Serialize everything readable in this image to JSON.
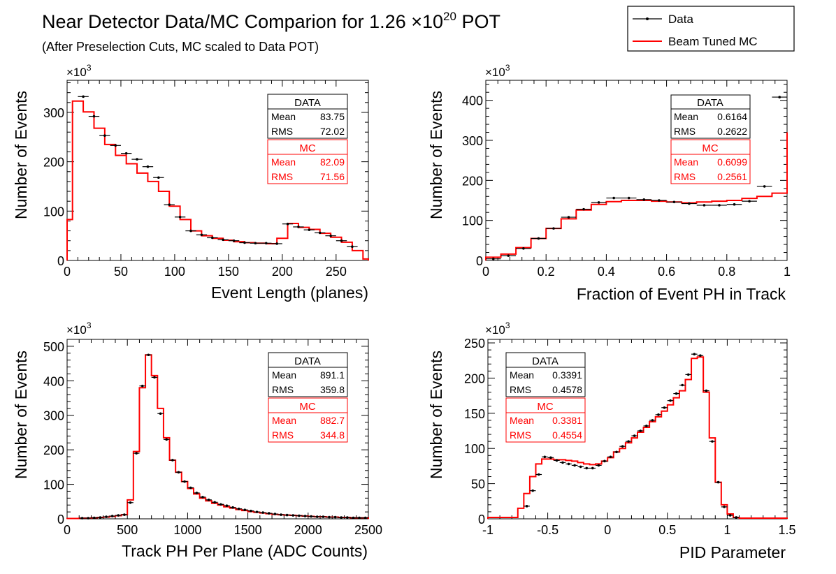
{
  "figure": {
    "title_main": "Near Detector Data/MC Comparion for 1.26 ",
    "title_times": "×10",
    "title_exp": "20",
    "title_pot": " POT",
    "subtitle": "(After Preselection Cuts, MC scaled to Data POT)",
    "legend": [
      {
        "label": "Data",
        "color": "#000000"
      },
      {
        "label": "Beam Tuned MC",
        "color": "#ff0000"
      }
    ],
    "data_color": "#000000",
    "mc_color": "#ff0000"
  },
  "chart_data": [
    {
      "type": "histogram",
      "xlabel": "Event Length (planes)",
      "ylabel": "Number of Events",
      "yscale_label": "×10",
      "yscale_exp": "3",
      "xlim": [
        0,
        280
      ],
      "ylim": [
        0,
        365
      ],
      "xticks": [
        0,
        50,
        100,
        150,
        200,
        250
      ],
      "yticks": [
        0,
        100,
        200,
        300
      ],
      "bin_width": 10,
      "data_x": [
        15,
        25,
        35,
        45,
        55,
        65,
        75,
        85,
        95,
        105,
        115,
        125,
        135,
        145,
        155,
        165,
        175,
        185,
        195,
        205,
        215,
        225,
        235,
        245,
        255,
        265
      ],
      "data_y": [
        332,
        292,
        253,
        233,
        217,
        205,
        190,
        168,
        113,
        88,
        60,
        52,
        46,
        42,
        40,
        36,
        35,
        35,
        34,
        74,
        68,
        62,
        56,
        50,
        40,
        28
      ],
      "mc_edges": [
        0,
        5,
        15,
        25,
        35,
        45,
        55,
        65,
        75,
        85,
        95,
        105,
        115,
        125,
        135,
        145,
        155,
        165,
        175,
        185,
        195,
        205,
        215,
        225,
        235,
        245,
        255,
        265,
        275,
        280
      ],
      "mc_values": [
        83,
        323,
        301,
        268,
        235,
        213,
        196,
        177,
        160,
        140,
        110,
        83,
        60,
        50,
        45,
        41,
        38,
        36,
        35,
        34,
        45,
        75,
        67,
        63,
        55,
        47,
        37,
        20,
        3
      ],
      "stats": {
        "data_header": "DATA",
        "data_rows": [
          {
            "label": "Mean",
            "value": "83.75"
          },
          {
            "label": "RMS",
            "value": "72.02"
          }
        ],
        "mc_header": "MC",
        "mc_rows": [
          {
            "label": "Mean",
            "value": "82.09"
          },
          {
            "label": "RMS",
            "value": "71.56"
          }
        ]
      }
    },
    {
      "type": "histogram",
      "xlabel": "Fraction of Event PH in Track",
      "ylabel": "Number of Events",
      "yscale_label": "×10",
      "yscale_exp": "3",
      "xlim": [
        0,
        1
      ],
      "ylim": [
        0,
        450
      ],
      "xticks": [
        0,
        0.2,
        0.4,
        0.6,
        0.8,
        1
      ],
      "yticks": [
        0,
        100,
        200,
        300,
        400
      ],
      "bin_width": 0.05,
      "data_x": [
        0.025,
        0.075,
        0.125,
        0.175,
        0.225,
        0.275,
        0.325,
        0.375,
        0.425,
        0.475,
        0.525,
        0.575,
        0.625,
        0.675,
        0.725,
        0.775,
        0.825,
        0.875,
        0.925,
        0.975
      ],
      "data_y": [
        4,
        12,
        30,
        55,
        80,
        108,
        128,
        145,
        156,
        156,
        152,
        150,
        146,
        142,
        138,
        138,
        140,
        148,
        185,
        408
      ],
      "mc_edges": [
        0,
        0.05,
        0.1,
        0.15,
        0.2,
        0.25,
        0.3,
        0.35,
        0.4,
        0.45,
        0.5,
        0.55,
        0.6,
        0.65,
        0.7,
        0.75,
        0.8,
        0.85,
        0.9,
        0.95,
        1.0
      ],
      "mc_values": [
        8,
        16,
        32,
        55,
        80,
        104,
        126,
        140,
        147,
        150,
        150,
        148,
        146,
        144,
        146,
        148,
        150,
        155,
        160,
        168,
        320
      ],
      "stats": {
        "data_header": "DATA",
        "data_rows": [
          {
            "label": "Mean",
            "value": "0.6164"
          },
          {
            "label": "RMS",
            "value": "0.2622"
          }
        ],
        "mc_header": "MC",
        "mc_rows": [
          {
            "label": "Mean",
            "value": "0.6099"
          },
          {
            "label": "RMS",
            "value": "0.2561"
          }
        ]
      }
    },
    {
      "type": "histogram",
      "xlabel": "Track PH Per Plane (ADC Counts)",
      "ylabel": "Number of Events",
      "yscale_label": "×10",
      "yscale_exp": "3",
      "xlim": [
        0,
        2500
      ],
      "ylim": [
        0,
        520
      ],
      "xticks": [
        0,
        500,
        1000,
        1500,
        2000,
        2500
      ],
      "yticks": [
        0,
        100,
        200,
        300,
        400,
        500
      ],
      "bin_width": 50,
      "data_x": [
        125,
        175,
        225,
        275,
        325,
        375,
        425,
        475,
        525,
        575,
        625,
        675,
        725,
        775,
        825,
        875,
        925,
        975,
        1025,
        1075,
        1125,
        1175,
        1225,
        1275,
        1325,
        1375,
        1425,
        1475,
        1525,
        1575,
        1625,
        1675,
        1725,
        1775,
        1825,
        1875,
        1925,
        1975,
        2025,
        2075,
        2125,
        2175,
        2225,
        2275,
        2325,
        2375,
        2425,
        2475
      ],
      "data_y": [
        2,
        2,
        3,
        4,
        6,
        8,
        10,
        12,
        47,
        190,
        385,
        475,
        410,
        305,
        230,
        170,
        135,
        108,
        90,
        75,
        63,
        55,
        48,
        42,
        38,
        33,
        29,
        26,
        23,
        20,
        18,
        16,
        14,
        12,
        11,
        10,
        9,
        8,
        7,
        6,
        6,
        5,
        5,
        4,
        4,
        3,
        3,
        3
      ],
      "mc_edges": [
        0,
        100,
        150,
        200,
        250,
        300,
        350,
        400,
        450,
        500,
        550,
        600,
        650,
        700,
        750,
        800,
        850,
        900,
        950,
        1000,
        1050,
        1100,
        1150,
        1200,
        1250,
        1300,
        1350,
        1400,
        1450,
        1500,
        1550,
        1600,
        1650,
        1700,
        1750,
        1800,
        1850,
        1900,
        1950,
        2000,
        2050,
        2100,
        2150,
        2200,
        2250,
        2300,
        2350,
        2400,
        2450,
        2500
      ],
      "mc_values": [
        1,
        2,
        2,
        3,
        4,
        5,
        7,
        9,
        12,
        55,
        195,
        380,
        475,
        415,
        320,
        235,
        170,
        135,
        108,
        88,
        72,
        60,
        52,
        45,
        40,
        35,
        31,
        27,
        24,
        21,
        19,
        17,
        15,
        13,
        12,
        11,
        10,
        9,
        8,
        7,
        6,
        6,
        5,
        5,
        4,
        4,
        3,
        3,
        3
      ],
      "stats": {
        "data_header": "DATA",
        "data_rows": [
          {
            "label": "Mean",
            "value": "891.1"
          },
          {
            "label": "RMS",
            "value": "359.8"
          }
        ],
        "mc_header": "MC",
        "mc_rows": [
          {
            "label": "Mean",
            "value": "882.7"
          },
          {
            "label": "RMS",
            "value": "344.8"
          }
        ]
      }
    },
    {
      "type": "histogram",
      "xlabel": "PID Parameter",
      "ylabel": "Number of Events",
      "yscale_label": "×10",
      "yscale_exp": "3",
      "xlim": [
        -1,
        1.5
      ],
      "ylim": [
        0,
        255
      ],
      "xticks": [
        -1,
        -0.5,
        0,
        0.5,
        1,
        1.5
      ],
      "yticks": [
        0,
        50,
        100,
        150,
        200,
        250
      ],
      "bin_width": 0.05,
      "data_x": [
        -0.675,
        -0.625,
        -0.575,
        -0.525,
        -0.475,
        -0.425,
        -0.375,
        -0.325,
        -0.275,
        -0.225,
        -0.175,
        -0.125,
        -0.075,
        -0.025,
        0.025,
        0.075,
        0.125,
        0.175,
        0.225,
        0.275,
        0.325,
        0.375,
        0.425,
        0.475,
        0.525,
        0.575,
        0.625,
        0.675,
        0.725,
        0.775,
        0.825,
        0.875,
        0.925,
        0.975,
        1.025,
        1.075
      ],
      "data_y": [
        18,
        40,
        63,
        88,
        87,
        83,
        80,
        78,
        76,
        74,
        72,
        72,
        76,
        82,
        88,
        95,
        103,
        110,
        118,
        125,
        132,
        140,
        148,
        158,
        168,
        178,
        190,
        205,
        234,
        232,
        182,
        110,
        52,
        17,
        5,
        2
      ],
      "mc_edges": [
        -1,
        -0.75,
        -0.7,
        -0.65,
        -0.6,
        -0.55,
        -0.5,
        -0.45,
        -0.4,
        -0.35,
        -0.3,
        -0.25,
        -0.2,
        -0.15,
        -0.1,
        -0.05,
        0,
        0.05,
        0.1,
        0.15,
        0.2,
        0.25,
        0.3,
        0.35,
        0.4,
        0.45,
        0.5,
        0.55,
        0.6,
        0.65,
        0.7,
        0.75,
        0.8,
        0.85,
        0.9,
        0.95,
        1.0,
        1.05,
        1.1,
        1.5
      ],
      "mc_values": [
        2,
        15,
        36,
        60,
        78,
        85,
        85,
        84,
        84,
        83,
        82,
        80,
        78,
        77,
        78,
        82,
        87,
        95,
        100,
        108,
        115,
        123,
        130,
        138,
        145,
        153,
        162,
        172,
        182,
        198,
        228,
        230,
        180,
        115,
        52,
        20,
        7,
        2,
        1
      ],
      "stats": {
        "data_header": "DATA",
        "data_rows": [
          {
            "label": "Mean",
            "value": "0.3391"
          },
          {
            "label": "RMS",
            "value": "0.4578"
          }
        ],
        "mc_header": "MC",
        "mc_rows": [
          {
            "label": "Mean",
            "value": "0.3381"
          },
          {
            "label": "RMS",
            "value": "0.4554"
          }
        ]
      }
    }
  ]
}
